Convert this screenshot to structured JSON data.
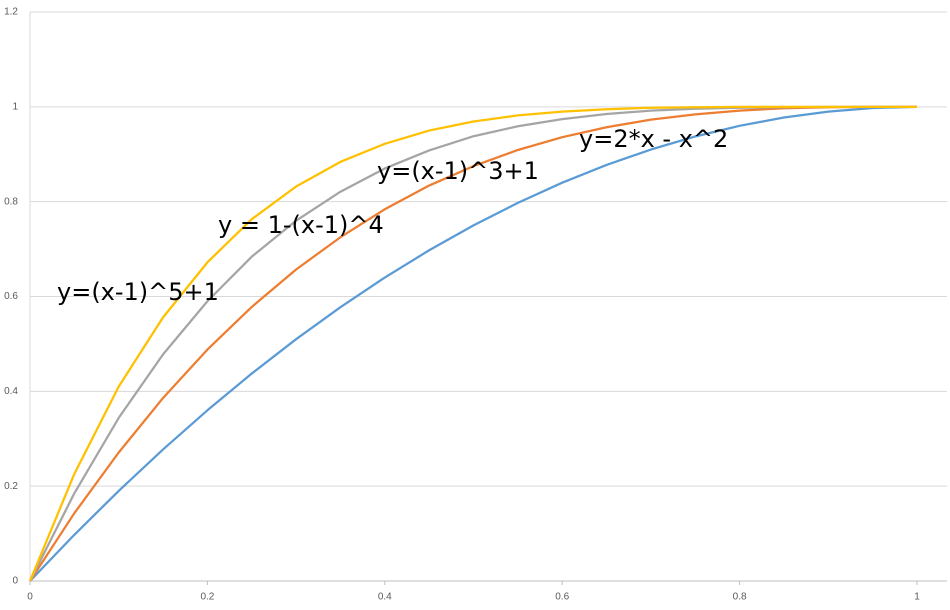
{
  "chart_data": {
    "type": "line",
    "x": [
      0,
      0.05,
      0.1,
      0.15,
      0.2,
      0.25,
      0.3,
      0.35,
      0.4,
      0.45,
      0.5,
      0.55,
      0.6,
      0.65,
      0.7,
      0.75,
      0.8,
      0.85,
      0.9,
      0.95,
      1
    ],
    "series": [
      {
        "name": "y=2*x - x^2",
        "color": "#5b9bd5",
        "values": [
          0,
          0.0975,
          0.19,
          0.2775,
          0.36,
          0.4375,
          0.51,
          0.5775,
          0.64,
          0.6975,
          0.75,
          0.7975,
          0.84,
          0.8775,
          0.91,
          0.9375,
          0.96,
          0.9775,
          0.99,
          0.9975,
          1
        ]
      },
      {
        "name": "y=(x-1)^3+1",
        "color": "#ed7d31",
        "values": [
          0,
          0.143,
          0.271,
          0.386,
          0.488,
          0.578,
          0.657,
          0.725,
          0.784,
          0.834,
          0.875,
          0.909,
          0.936,
          0.957,
          0.973,
          0.984,
          0.992,
          0.997,
          0.999,
          1,
          1
        ]
      },
      {
        "name": "y = 1-(x-1)^4",
        "color": "#a5a5a5",
        "values": [
          0,
          0.185,
          0.344,
          0.478,
          0.59,
          0.684,
          0.76,
          0.821,
          0.87,
          0.908,
          0.938,
          0.959,
          0.974,
          0.985,
          0.992,
          0.996,
          0.998,
          0.999,
          1,
          1,
          1
        ]
      },
      {
        "name": "y=(x-1)^5+1",
        "color": "#ffc000",
        "values": [
          0,
          0.226,
          0.41,
          0.556,
          0.672,
          0.763,
          0.832,
          0.884,
          0.922,
          0.95,
          0.969,
          0.982,
          0.99,
          0.995,
          0.998,
          0.999,
          1,
          1,
          1,
          1,
          1
        ]
      }
    ],
    "xlim": [
      0,
      1
    ],
    "xticks": [
      0,
      0.2,
      0.4,
      0.6,
      0.8,
      1
    ],
    "ylim": [
      0,
      1.2
    ],
    "yticks": [
      0,
      0.2,
      0.4,
      0.6,
      0.8,
      1,
      1.2
    ],
    "grid": true
  }
}
